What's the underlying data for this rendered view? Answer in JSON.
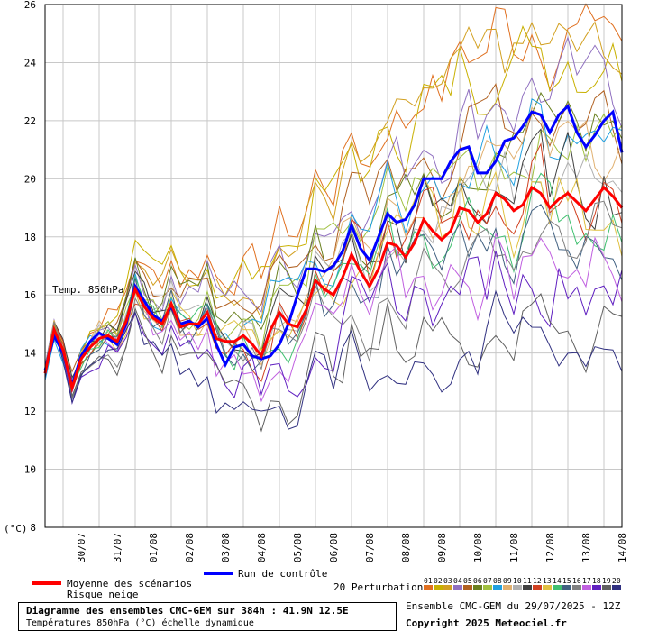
{
  "chart_data": {
    "type": "line",
    "series_label": "Temp. 850hPa",
    "yunit": "(°C)",
    "ylim": [
      8,
      26
    ],
    "yticks": [
      8,
      10,
      12,
      14,
      16,
      18,
      20,
      22,
      24,
      26
    ],
    "xlim": [
      0,
      384
    ],
    "xticks": [
      {
        "t": 24,
        "label": "30/07"
      },
      {
        "t": 48,
        "label": "31/07"
      },
      {
        "t": 72,
        "label": "01/08"
      },
      {
        "t": 96,
        "label": "02/08"
      },
      {
        "t": 120,
        "label": "03/08"
      },
      {
        "t": 144,
        "label": "04/08"
      },
      {
        "t": 168,
        "label": "05/08"
      },
      {
        "t": 192,
        "label": "06/08"
      },
      {
        "t": 216,
        "label": "07/08"
      },
      {
        "t": 240,
        "label": "08/08"
      },
      {
        "t": 264,
        "label": "09/08"
      },
      {
        "t": 288,
        "label": "10/08"
      },
      {
        "t": 312,
        "label": "11/08"
      },
      {
        "t": 336,
        "label": "12/08"
      },
      {
        "t": 360,
        "label": "13/08"
      },
      {
        "t": 384,
        "label": "14/08"
      }
    ],
    "grid": true,
    "mean": {
      "name": "Moyenne des scénarios",
      "color": "#ff0000",
      "points": [
        [
          0,
          13.3
        ],
        [
          6,
          14.8
        ],
        [
          12,
          14.1
        ],
        [
          18,
          12.8
        ],
        [
          24,
          13.8
        ],
        [
          30,
          14.2
        ],
        [
          36,
          14.5
        ],
        [
          42,
          14.6
        ],
        [
          48,
          14.4
        ],
        [
          54,
          15.1
        ],
        [
          60,
          16.2
        ],
        [
          66,
          15.6
        ],
        [
          72,
          15.2
        ],
        [
          78,
          15.0
        ],
        [
          84,
          15.7
        ],
        [
          90,
          14.9
        ],
        [
          96,
          15.0
        ],
        [
          102,
          15.0
        ],
        [
          108,
          15.4
        ],
        [
          114,
          14.5
        ],
        [
          120,
          14.4
        ],
        [
          126,
          14.4
        ],
        [
          132,
          14.6
        ],
        [
          138,
          14.3
        ],
        [
          144,
          13.9
        ],
        [
          150,
          14.8
        ],
        [
          156,
          15.4
        ],
        [
          162,
          15.0
        ],
        [
          168,
          14.9
        ],
        [
          174,
          15.5
        ],
        [
          180,
          16.5
        ],
        [
          186,
          16.2
        ],
        [
          192,
          16.0
        ],
        [
          198,
          16.6
        ],
        [
          204,
          17.4
        ],
        [
          210,
          16.8
        ],
        [
          216,
          16.3
        ],
        [
          222,
          16.9
        ],
        [
          228,
          17.8
        ],
        [
          234,
          17.7
        ],
        [
          240,
          17.3
        ],
        [
          246,
          17.8
        ],
        [
          252,
          18.6
        ],
        [
          258,
          18.2
        ],
        [
          264,
          17.9
        ],
        [
          270,
          18.2
        ],
        [
          276,
          19.0
        ],
        [
          282,
          18.9
        ],
        [
          288,
          18.5
        ],
        [
          294,
          18.8
        ],
        [
          300,
          19.5
        ],
        [
          306,
          19.3
        ],
        [
          312,
          18.9
        ],
        [
          318,
          19.1
        ],
        [
          324,
          19.7
        ],
        [
          330,
          19.5
        ],
        [
          336,
          19.0
        ],
        [
          342,
          19.3
        ],
        [
          348,
          19.5
        ],
        [
          354,
          19.2
        ],
        [
          360,
          18.9
        ],
        [
          366,
          19.3
        ],
        [
          372,
          19.7
        ],
        [
          378,
          19.4
        ],
        [
          384,
          19.0
        ]
      ]
    },
    "control": {
      "name": "Run de contrôle",
      "color": "#0000ff",
      "points": [
        [
          0,
          13.4
        ],
        [
          6,
          14.6
        ],
        [
          12,
          14.0
        ],
        [
          18,
          12.9
        ],
        [
          24,
          13.9
        ],
        [
          30,
          14.4
        ],
        [
          36,
          14.7
        ],
        [
          42,
          14.5
        ],
        [
          48,
          14.3
        ],
        [
          54,
          15.0
        ],
        [
          60,
          16.3
        ],
        [
          66,
          15.8
        ],
        [
          72,
          15.3
        ],
        [
          78,
          15.1
        ],
        [
          84,
          15.6
        ],
        [
          90,
          15.0
        ],
        [
          96,
          15.1
        ],
        [
          102,
          14.9
        ],
        [
          108,
          15.2
        ],
        [
          114,
          14.3
        ],
        [
          120,
          13.6
        ],
        [
          126,
          14.2
        ],
        [
          132,
          14.3
        ],
        [
          138,
          13.9
        ],
        [
          144,
          13.8
        ],
        [
          150,
          13.9
        ],
        [
          156,
          14.3
        ],
        [
          162,
          15.0
        ],
        [
          168,
          16.0
        ],
        [
          174,
          16.9
        ],
        [
          180,
          16.9
        ],
        [
          186,
          16.8
        ],
        [
          192,
          17.0
        ],
        [
          198,
          17.5
        ],
        [
          204,
          18.4
        ],
        [
          210,
          17.6
        ],
        [
          216,
          17.2
        ],
        [
          222,
          18.0
        ],
        [
          228,
          18.8
        ],
        [
          234,
          18.5
        ],
        [
          240,
          18.6
        ],
        [
          246,
          19.1
        ],
        [
          252,
          20.0
        ],
        [
          258,
          20.0
        ],
        [
          264,
          20.0
        ],
        [
          270,
          20.6
        ],
        [
          276,
          21.0
        ],
        [
          282,
          21.1
        ],
        [
          288,
          20.2
        ],
        [
          294,
          20.2
        ],
        [
          300,
          20.6
        ],
        [
          306,
          21.3
        ],
        [
          312,
          21.4
        ],
        [
          318,
          21.8
        ],
        [
          324,
          22.3
        ],
        [
          330,
          22.2
        ],
        [
          336,
          21.6
        ],
        [
          342,
          22.2
        ],
        [
          348,
          22.5
        ],
        [
          354,
          21.6
        ],
        [
          360,
          21.1
        ],
        [
          366,
          21.5
        ],
        [
          372,
          22.0
        ],
        [
          378,
          22.3
        ],
        [
          384,
          20.9
        ]
      ]
    },
    "perturbations": {
      "label": "20 Perturbations",
      "count": 20,
      "ids": [
        "01",
        "02",
        "03",
        "04",
        "05",
        "06",
        "07",
        "08",
        "09",
        "10",
        "11",
        "12",
        "13",
        "14",
        "15",
        "16",
        "17",
        "18",
        "19",
        "20"
      ],
      "colors": [
        "#e07020",
        "#c8b000",
        "#d2a020",
        "#9070c0",
        "#b06020",
        "#6a8020",
        "#a0c040",
        "#20a0e0",
        "#e0b070",
        "#b0b0b0",
        "#404040",
        "#d04020",
        "#e0c040",
        "#40c070",
        "#406080",
        "#808080",
        "#c060e0",
        "#6020c0",
        "#606060",
        "#303080"
      ],
      "end_values": [
        24.9,
        24.2,
        24.0,
        22.8,
        22.2,
        21.5,
        21.0,
        20.7,
        20.3,
        20.0,
        19.6,
        19.2,
        18.9,
        18.5,
        18.0,
        17.5,
        17.0,
        16.5,
        15.0,
        14.1
      ]
    }
  },
  "legend": {
    "mean_label": "Moyenne des scénarios",
    "snow_label": "Risque neige",
    "control_label": "Run de contrôle",
    "perturb_label": "20 Perturbations"
  },
  "footer": {
    "title": "Diagramme des ensembles CMC-GEM sur 384h : 41.9N 12.5E",
    "subtitle": "Températures 850hPa (°C) échelle dynamique",
    "run": "Ensemble CMC-GEM du 29/07/2025 - 12Z",
    "copyright": "Copyright 2025 Meteociel.fr"
  }
}
